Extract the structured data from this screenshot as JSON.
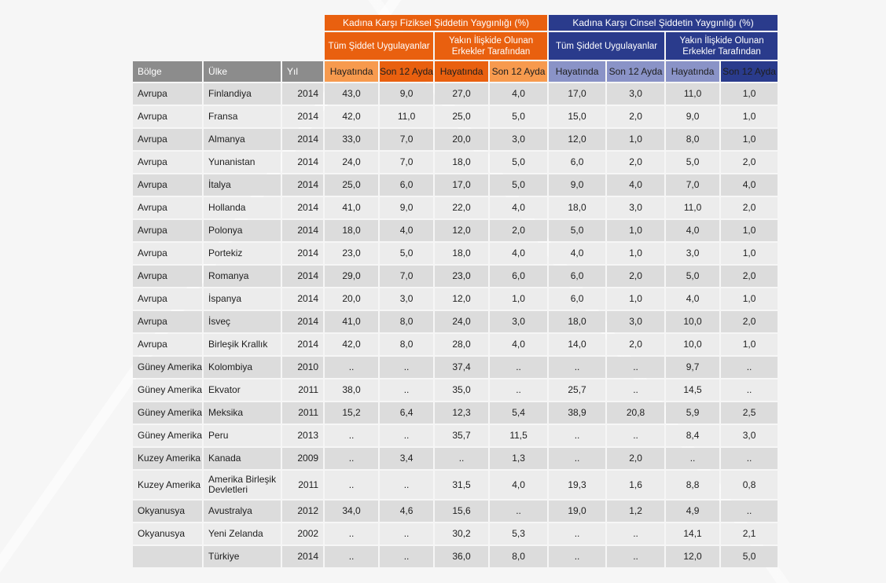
{
  "groups": {
    "physical": "Kadına Karşı Fiziksel Şiddetin Yaygınlığı (%)",
    "sexual": "Kadına Karşı Cinsel Şiddetin Yaygınlığı (%)"
  },
  "subgroups": {
    "all": "Tüm Şiddet Uygulayanlar",
    "partner": "Yakın İlişkide Olunan Erkekler Tarafından"
  },
  "columns": {
    "region": "Bölge",
    "country": "Ülke",
    "year": "Yıl",
    "lifetime": "Hayatında",
    "last12": "Son 12 Ayda"
  },
  "rows": [
    {
      "region": "Avrupa",
      "country": "Finlandiya",
      "year": "2014",
      "v": [
        "43,0",
        "9,0",
        "27,0",
        "4,0",
        "17,0",
        "3,0",
        "11,0",
        "1,0"
      ]
    },
    {
      "region": "Avrupa",
      "country": "Fransa",
      "year": "2014",
      "v": [
        "42,0",
        "11,0",
        "25,0",
        "5,0",
        "15,0",
        "2,0",
        "9,0",
        "1,0"
      ]
    },
    {
      "region": "Avrupa",
      "country": "Almanya",
      "year": "2014",
      "v": [
        "33,0",
        "7,0",
        "20,0",
        "3,0",
        "12,0",
        "1,0",
        "8,0",
        "1,0"
      ]
    },
    {
      "region": "Avrupa",
      "country": "Yunanistan",
      "year": "2014",
      "v": [
        "24,0",
        "7,0",
        "18,0",
        "5,0",
        "6,0",
        "2,0",
        "5,0",
        "2,0"
      ]
    },
    {
      "region": "Avrupa",
      "country": "İtalya",
      "year": "2014",
      "v": [
        "25,0",
        "6,0",
        "17,0",
        "5,0",
        "9,0",
        "4,0",
        "7,0",
        "4,0"
      ]
    },
    {
      "region": "Avrupa",
      "country": "Hollanda",
      "year": "2014",
      "v": [
        "41,0",
        "9,0",
        "22,0",
        "4,0",
        "18,0",
        "3,0",
        "11,0",
        "2,0"
      ]
    },
    {
      "region": "Avrupa",
      "country": "Polonya",
      "year": "2014",
      "v": [
        "18,0",
        "4,0",
        "12,0",
        "2,0",
        "5,0",
        "1,0",
        "4,0",
        "1,0"
      ]
    },
    {
      "region": "Avrupa",
      "country": "Portekiz",
      "year": "2014",
      "v": [
        "23,0",
        "5,0",
        "18,0",
        "4,0",
        "4,0",
        "1,0",
        "3,0",
        "1,0"
      ]
    },
    {
      "region": "Avrupa",
      "country": "Romanya",
      "year": "2014",
      "v": [
        "29,0",
        "7,0",
        "23,0",
        "6,0",
        "6,0",
        "2,0",
        "5,0",
        "2,0"
      ]
    },
    {
      "region": "Avrupa",
      "country": "İspanya",
      "year": "2014",
      "v": [
        "20,0",
        "3,0",
        "12,0",
        "1,0",
        "6,0",
        "1,0",
        "4,0",
        "1,0"
      ]
    },
    {
      "region": "Avrupa",
      "country": "İsveç",
      "year": "2014",
      "v": [
        "41,0",
        "8,0",
        "24,0",
        "3,0",
        "18,0",
        "3,0",
        "10,0",
        "2,0"
      ]
    },
    {
      "region": "Avrupa",
      "country": "Birleşik Krallık",
      "year": "2014",
      "v": [
        "42,0",
        "8,0",
        "28,0",
        "4,0",
        "14,0",
        "2,0",
        "10,0",
        "1,0"
      ]
    },
    {
      "region": "Güney Amerika",
      "country": "Kolombiya",
      "year": "2010",
      "v": [
        "..",
        "..",
        "37,4",
        "..",
        "..",
        "..",
        "9,7",
        ".."
      ]
    },
    {
      "region": "Güney Amerika",
      "country": "Ekvator",
      "year": "2011",
      "v": [
        "38,0",
        "..",
        "35,0",
        "..",
        "25,7",
        "..",
        "14,5",
        ".."
      ]
    },
    {
      "region": "Güney Amerika",
      "country": "Meksika",
      "year": "2011",
      "v": [
        "15,2",
        "6,4",
        "12,3",
        "5,4",
        "38,9",
        "20,8",
        "5,9",
        "2,5"
      ]
    },
    {
      "region": "Güney Amerika",
      "country": "Peru",
      "year": "2013",
      "v": [
        "..",
        "..",
        "35,7",
        "11,5",
        "..",
        "..",
        "8,4",
        "3,0"
      ]
    },
    {
      "region": "Kuzey Amerika",
      "country": "Kanada",
      "year": "2009",
      "v": [
        "..",
        "3,4",
        "..",
        "1,3",
        "..",
        "2,0",
        "..",
        ".."
      ]
    },
    {
      "region": "Kuzey Amerika",
      "country": "Amerika Birleşik Devletleri",
      "year": "2011",
      "v": [
        "..",
        "..",
        "31,5",
        "4,0",
        "19,3",
        "1,6",
        "8,8",
        "0,8"
      ]
    },
    {
      "region": "Okyanusya",
      "country": "Avustralya",
      "year": "2012",
      "v": [
        "34,0",
        "4,6",
        "15,6",
        "..",
        "19,0",
        "1,2",
        "4,9",
        ".."
      ]
    },
    {
      "region": "Okyanusya",
      "country": "Yeni Zelanda",
      "year": "2002",
      "v": [
        "..",
        "..",
        "30,2",
        "5,3",
        "..",
        "..",
        "14,1",
        "2,1"
      ]
    },
    {
      "region": "",
      "country": "Türkiye",
      "year": "2014",
      "v": [
        "..",
        "..",
        "36,0",
        "8,0",
        "..",
        "..",
        "12,0",
        "5,0"
      ]
    }
  ]
}
